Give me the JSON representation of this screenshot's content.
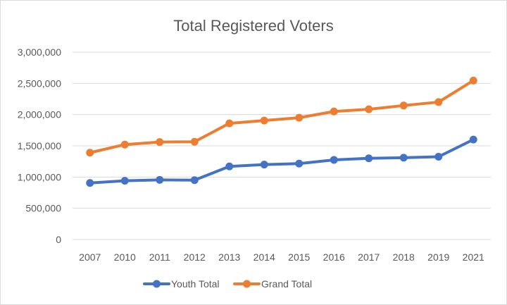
{
  "chart_data": {
    "type": "line",
    "title": "Total Registered Voters",
    "xlabel": "",
    "ylabel": "",
    "categories": [
      "2007",
      "2010",
      "2011",
      "2012",
      "2013",
      "2014",
      "2015",
      "2016",
      "2017",
      "2018",
      "2019",
      "2021"
    ],
    "ylim": [
      0,
      3000000
    ],
    "yticks": [
      0,
      500000,
      1000000,
      1500000,
      2000000,
      2500000,
      3000000
    ],
    "ytick_labels": [
      "0",
      "500,000",
      "1,000,000",
      "1,500,000",
      "2,000,000",
      "2,500,000",
      "3,000,000"
    ],
    "grid": true,
    "legend_position": "bottom",
    "series": [
      {
        "name": "Youth Total",
        "color": "#4472c4",
        "values": [
          905000,
          940000,
          955000,
          950000,
          1170000,
          1200000,
          1215000,
          1275000,
          1300000,
          1310000,
          1325000,
          1600000
        ]
      },
      {
        "name": "Grand Total",
        "color": "#ed7d31",
        "values": [
          1390000,
          1520000,
          1560000,
          1565000,
          1860000,
          1905000,
          1950000,
          2050000,
          2085000,
          2145000,
          2200000,
          2545000
        ]
      }
    ]
  }
}
